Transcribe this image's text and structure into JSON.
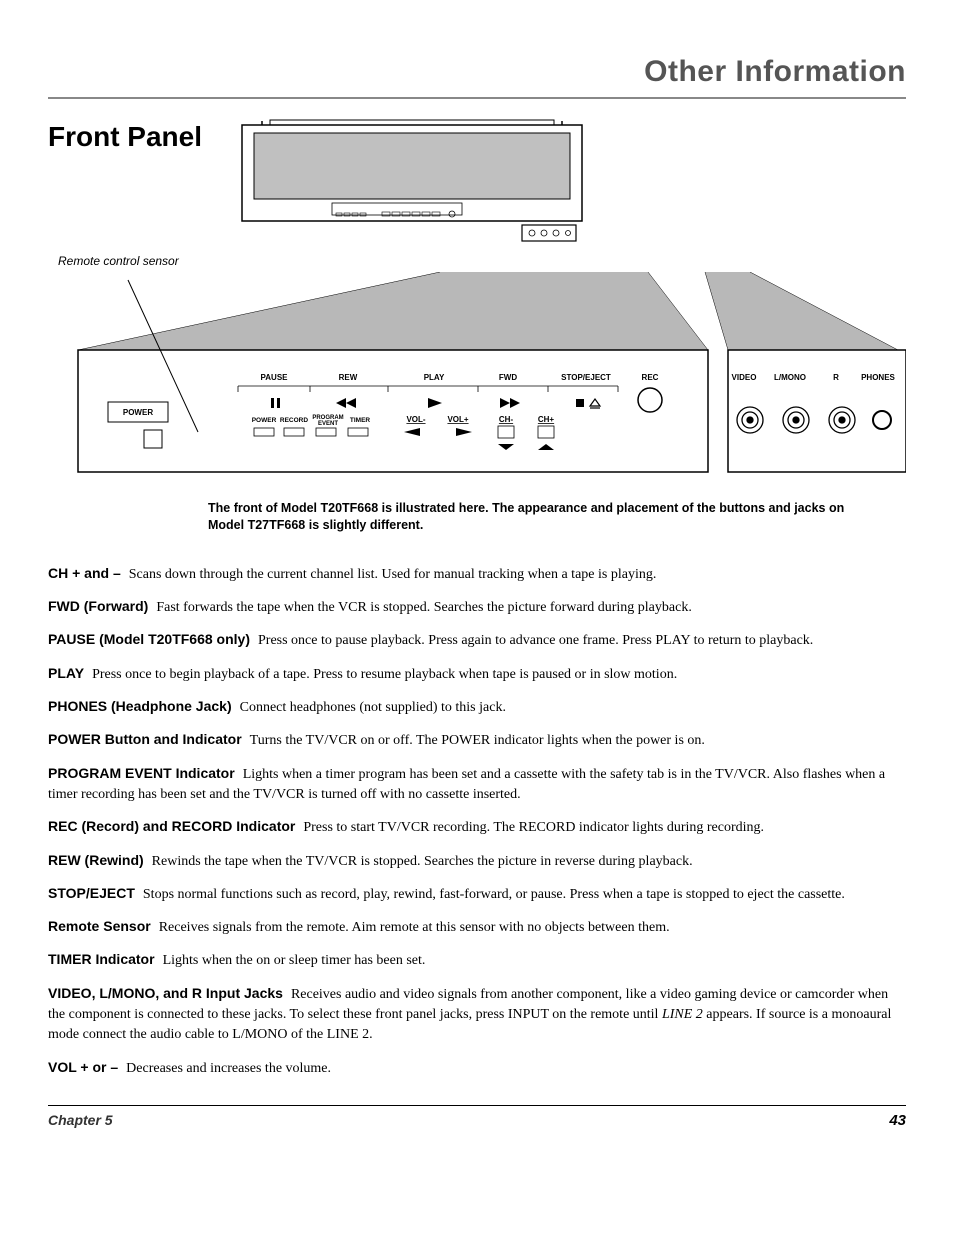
{
  "header": {
    "title": "Other Information"
  },
  "section": {
    "title": "Front Panel",
    "sensor_label": "Remote control sensor",
    "note": "The front of Model T20TF668 is illustrated here. The appearance and placement of the buttons and jacks on Model T27TF668 is slightly different."
  },
  "panel": {
    "power": "POWER",
    "pause": "PAUSE",
    "rew": "REW",
    "play": "PLAY",
    "fwd": "FWD",
    "stop_eject": "STOP/EJECT",
    "rec": "REC",
    "video": "VIDEO",
    "lmono": "L/MONO",
    "r": "R",
    "phones": "PHONES",
    "sub_power": "POWER",
    "sub_record": "RECORD",
    "sub_program": "PROGRAM\nEVENT",
    "sub_timer": "TIMER",
    "vol_minus": "VOL-",
    "vol_plus": "VOL+",
    "ch_minus": "CH-",
    "ch_plus": "CH+"
  },
  "entries": [
    {
      "term": "CH + and –",
      "desc": "Scans down through the current channel list. Used for manual tracking when a tape is playing."
    },
    {
      "term": "FWD (Forward)",
      "desc": "Fast forwards the tape when the VCR is stopped. Searches the picture forward during playback."
    },
    {
      "term": "PAUSE (Model T20TF668 only)",
      "desc": "Press once to pause playback. Press again to advance one frame. Press PLAY to return to playback."
    },
    {
      "term": "PLAY",
      "desc": "Press once to begin playback of a tape. Press to resume playback when tape is paused or in slow motion."
    },
    {
      "term": "PHONES (Headphone Jack)",
      "desc": "Connect headphones (not supplied) to this jack."
    },
    {
      "term": "POWER Button and Indicator",
      "desc": "Turns the TV/VCR on or off. The POWER indicator lights when the power is on."
    },
    {
      "term": "PROGRAM EVENT Indicator",
      "desc": "Lights when a timer program has been set and a cassette with the safety tab is in the TV/VCR. Also flashes when a timer recording has been set and the TV/VCR is turned off with no cassette inserted."
    },
    {
      "term": "REC (Record) and RECORD Indicator",
      "desc": "Press to start TV/VCR recording. The RECORD indicator lights during recording."
    },
    {
      "term": "REW (Rewind)",
      "desc": "Rewinds the tape when the TV/VCR is stopped. Searches the picture in reverse during playback."
    },
    {
      "term": "STOP/EJECT",
      "desc": "Stops normal functions such as record, play, rewind, fast-forward, or pause. Press when a tape is stopped to eject the cassette."
    },
    {
      "term": "Remote Sensor",
      "desc": "Receives signals from the remote.  Aim remote at this sensor with no objects between them."
    },
    {
      "term": "TIMER Indicator",
      "desc": "Lights when the on or sleep timer has been set."
    },
    {
      "term": "VIDEO, L/MONO, and R Input Jacks",
      "desc": "Receives audio and video signals from another component, like a video gaming device or camcorder when the component is connected to these jacks. To select these front panel jacks, press INPUT on the remote until LINE 2 appears. If source is a monoaural mode connect the audio cable to L/MONO of the LINE 2.",
      "italic": "LINE 2"
    },
    {
      "term": "VOL + or –",
      "desc": "Decreases and increases the volume."
    }
  ],
  "footer": {
    "chapter": "Chapter 5",
    "page": "43"
  },
  "colors": {
    "gray_fill": "#b8b8b8",
    "rule": "#888888"
  }
}
